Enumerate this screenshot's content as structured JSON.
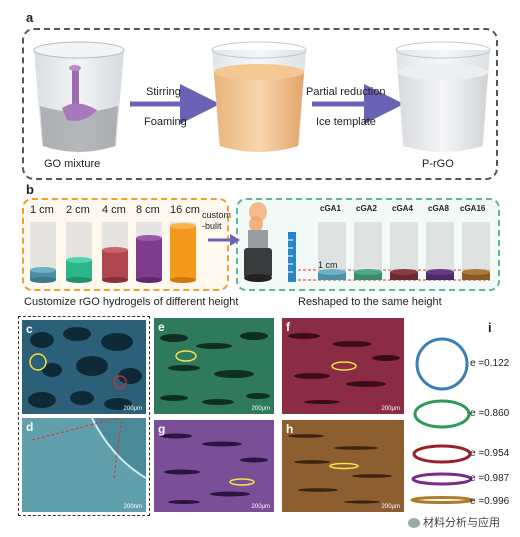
{
  "panel_a": {
    "letter": "a",
    "beaker1_label": "GO mixture",
    "arrow1_top": "Stirring",
    "arrow1_bottom": "Foaming",
    "arrow2_top": "Partial reduction",
    "arrow2_bottom": "Ice template",
    "beaker3_label": "P-rGO"
  },
  "panel_b": {
    "letter": "b",
    "heights": [
      "1 cm",
      "2 cm",
      "4 cm",
      "8 cm",
      "16 cm"
    ],
    "height_colors": [
      "#4a8fa3",
      "#2bb58a",
      "#b0464e",
      "#7d3d8c",
      "#f39a1e"
    ],
    "custom_label": "custom\n-bulit",
    "samples": [
      "cGA1",
      "cGA2",
      "cGA4",
      "cGA8",
      "cGA16"
    ],
    "ruler_label": "1 cm",
    "caption_left": "Customize rGO hydrogels of different height",
    "caption_right": "Reshaped to the same height"
  },
  "sem": {
    "c": {
      "letter": "c",
      "scale": "200μm",
      "color": "#3f7f9e"
    },
    "d": {
      "letter": "d",
      "scale": "200nm",
      "color": "#4f8f9a"
    },
    "e": {
      "letter": "e",
      "scale": "200μm",
      "color": "#3f9a76"
    },
    "f": {
      "letter": "f",
      "scale": "200μm",
      "color": "#a03a52"
    },
    "g": {
      "letter": "g",
      "scale": "200μm",
      "color": "#8a5aa8"
    },
    "h": {
      "letter": "h",
      "scale": "200μm",
      "color": "#9a6a35"
    }
  },
  "panel_i": {
    "letter": "i",
    "rings": [
      {
        "value": "e =0.122",
        "color": "#3a7fb5"
      },
      {
        "value": "e =0.860",
        "color": "#2e9a5a"
      },
      {
        "value": "e =0.954",
        "color": "#9a1f2a"
      },
      {
        "value": "e =0.987",
        "color": "#7a2a8a"
      },
      {
        "value": "e =0.996",
        "color": "#b07a2a"
      }
    ]
  },
  "watermark": "材料分析与应用"
}
